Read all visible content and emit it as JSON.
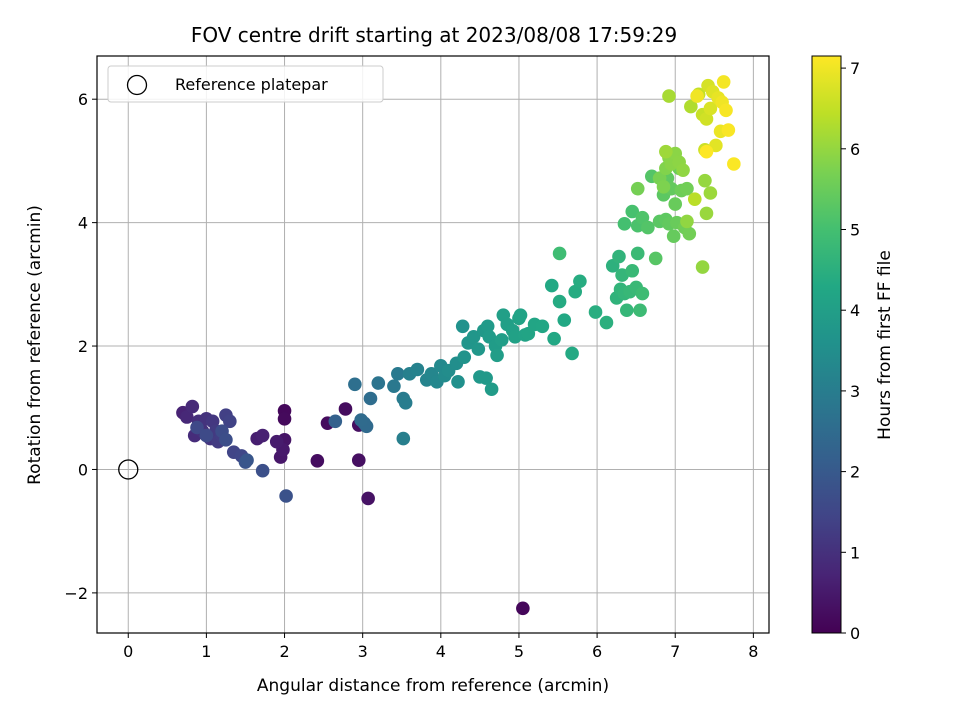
{
  "chart_data": {
    "type": "scatter",
    "title": "FOV centre drift starting at 2023/08/08 17:59:29",
    "xlabel": "Angular distance from reference (arcmin)",
    "ylabel": "Rotation from reference (arcmin)",
    "xlim": [
      -0.4,
      8.2
    ],
    "ylim": [
      -2.65,
      6.7
    ],
    "xticks": [
      0,
      1,
      2,
      3,
      4,
      5,
      6,
      7,
      8
    ],
    "yticks": [
      -2,
      0,
      2,
      4,
      6
    ],
    "xtick_labels": [
      "0",
      "1",
      "2",
      "3",
      "4",
      "5",
      "6",
      "7",
      "8"
    ],
    "ytick_labels": [
      "−2",
      "0",
      "2",
      "4",
      "6"
    ],
    "grid": true,
    "colormap": "viridis",
    "colorbar": {
      "label": "Hours from first FF file",
      "range": [
        0,
        7.15
      ],
      "ticks": [
        0,
        1,
        2,
        3,
        4,
        5,
        6,
        7
      ],
      "tick_labels": [
        "0",
        "1",
        "2",
        "3",
        "4",
        "5",
        "6",
        "7"
      ]
    },
    "legend": {
      "position": "upper-left",
      "entries": [
        {
          "label": "Reference platepar",
          "marker": "open-circle"
        }
      ]
    },
    "reference_point": {
      "x": 0,
      "y": 0
    },
    "series": [
      {
        "color_by": "hours",
        "points": [
          [
            5.05,
            -2.25,
            0.12
          ],
          [
            2.0,
            0.95,
            0.15
          ],
          [
            2.0,
            0.82,
            0.18
          ],
          [
            2.42,
            0.14,
            0.25
          ],
          [
            2.55,
            0.75,
            0.2
          ],
          [
            2.78,
            0.98,
            0.22
          ],
          [
            2.95,
            0.72,
            0.28
          ],
          [
            2.95,
            0.15,
            0.3
          ],
          [
            3.07,
            -0.47,
            0.35
          ],
          [
            2.0,
            0.48,
            0.4
          ],
          [
            1.95,
            0.2,
            0.45
          ],
          [
            1.98,
            0.32,
            0.5
          ],
          [
            1.9,
            0.45,
            0.55
          ],
          [
            1.65,
            0.5,
            0.6
          ],
          [
            1.72,
            0.55,
            0.65
          ],
          [
            0.7,
            0.92,
            0.7
          ],
          [
            0.75,
            0.85,
            0.8
          ],
          [
            0.82,
            1.02,
            0.85
          ],
          [
            0.85,
            0.55,
            0.9
          ],
          [
            0.9,
            0.78,
            0.95
          ],
          [
            0.95,
            0.62,
            1.0
          ],
          [
            1.0,
            0.82,
            1.05
          ],
          [
            1.05,
            0.5,
            1.1
          ],
          [
            1.08,
            0.78,
            1.15
          ],
          [
            1.12,
            0.62,
            1.2
          ],
          [
            1.15,
            0.45,
            1.25
          ],
          [
            1.2,
            0.55,
            1.3
          ],
          [
            1.25,
            0.88,
            1.35
          ],
          [
            1.3,
            0.78,
            1.4
          ],
          [
            1.35,
            0.28,
            1.45
          ],
          [
            1.45,
            0.22,
            1.5
          ],
          [
            0.88,
            0.68,
            1.55
          ],
          [
            1.0,
            0.55,
            1.6
          ],
          [
            1.2,
            0.62,
            1.65
          ],
          [
            1.25,
            0.48,
            1.7
          ],
          [
            1.72,
            -0.02,
            1.75
          ],
          [
            2.02,
            -0.43,
            1.8
          ],
          [
            1.5,
            0.12,
            1.85
          ],
          [
            1.52,
            0.15,
            1.9
          ],
          [
            2.65,
            0.78,
            2.2
          ],
          [
            3.02,
            0.75,
            2.4
          ],
          [
            3.05,
            0.7,
            2.45
          ],
          [
            2.98,
            0.8,
            2.5
          ],
          [
            3.1,
            1.15,
            2.55
          ],
          [
            2.9,
            1.38,
            2.6
          ],
          [
            3.2,
            1.4,
            2.75
          ],
          [
            3.4,
            1.35,
            2.85
          ],
          [
            3.45,
            1.55,
            2.9
          ],
          [
            3.52,
            1.15,
            2.95
          ],
          [
            3.55,
            1.08,
            3.0
          ],
          [
            3.52,
            0.5,
            3.05
          ],
          [
            3.6,
            1.55,
            3.1
          ],
          [
            3.7,
            1.62,
            3.15
          ],
          [
            3.82,
            1.45,
            3.2
          ],
          [
            3.88,
            1.55,
            3.25
          ],
          [
            3.95,
            1.42,
            3.3
          ],
          [
            4.0,
            1.68,
            3.35
          ],
          [
            4.05,
            1.52,
            3.4
          ],
          [
            4.1,
            1.6,
            3.45
          ],
          [
            4.2,
            1.72,
            3.5
          ],
          [
            4.22,
            1.42,
            3.55
          ],
          [
            4.28,
            2.32,
            3.6
          ],
          [
            4.3,
            1.82,
            3.65
          ],
          [
            4.35,
            2.05,
            3.7
          ],
          [
            4.42,
            2.15,
            3.72
          ],
          [
            4.48,
            1.95,
            3.75
          ],
          [
            4.5,
            1.5,
            3.78
          ],
          [
            4.55,
            2.25,
            3.8
          ],
          [
            4.58,
            1.48,
            3.82
          ],
          [
            4.6,
            2.32,
            3.85
          ],
          [
            4.62,
            2.15,
            3.88
          ],
          [
            4.65,
            1.3,
            3.9
          ],
          [
            4.7,
            2.0,
            3.92
          ],
          [
            4.72,
            1.85,
            3.95
          ],
          [
            4.78,
            2.1,
            3.97
          ],
          [
            4.8,
            2.5,
            4.0
          ],
          [
            4.85,
            2.35,
            4.02
          ],
          [
            4.92,
            2.25,
            4.05
          ],
          [
            4.95,
            2.15,
            4.08
          ],
          [
            5.0,
            2.45,
            4.1
          ],
          [
            5.02,
            2.5,
            4.12
          ],
          [
            5.08,
            2.18,
            4.15
          ],
          [
            5.12,
            2.2,
            4.18
          ],
          [
            5.2,
            2.35,
            4.2
          ],
          [
            5.3,
            2.32,
            4.22
          ],
          [
            5.45,
            2.12,
            4.25
          ],
          [
            5.42,
            2.98,
            4.28
          ],
          [
            5.58,
            2.42,
            4.3
          ],
          [
            5.68,
            1.88,
            4.33
          ],
          [
            5.52,
            2.72,
            4.35
          ],
          [
            5.72,
            2.88,
            4.38
          ],
          [
            5.78,
            3.05,
            4.4
          ],
          [
            5.98,
            2.55,
            4.45
          ],
          [
            6.12,
            2.38,
            4.5
          ],
          [
            6.2,
            3.3,
            4.55
          ],
          [
            6.25,
            2.78,
            4.6
          ],
          [
            6.28,
            3.45,
            4.62
          ],
          [
            6.3,
            2.92,
            4.65
          ],
          [
            6.32,
            3.15,
            4.68
          ],
          [
            6.35,
            2.85,
            4.7
          ],
          [
            6.38,
            2.58,
            4.72
          ],
          [
            6.42,
            2.88,
            4.75
          ],
          [
            6.45,
            3.22,
            4.78
          ],
          [
            6.5,
            2.95,
            4.8
          ],
          [
            6.52,
            3.5,
            4.82
          ],
          [
            6.55,
            2.58,
            4.85
          ],
          [
            6.58,
            2.85,
            4.88
          ],
          [
            5.52,
            3.5,
            4.9
          ],
          [
            6.35,
            3.98,
            5.0
          ],
          [
            6.45,
            4.18,
            5.05
          ],
          [
            6.52,
            3.95,
            5.1
          ],
          [
            6.58,
            4.08,
            5.15
          ],
          [
            6.65,
            3.92,
            5.2
          ],
          [
            6.7,
            4.75,
            5.22
          ],
          [
            6.75,
            3.42,
            5.25
          ],
          [
            6.8,
            4.02,
            5.3
          ],
          [
            6.85,
            4.45,
            5.32
          ],
          [
            6.88,
            4.05,
            5.35
          ],
          [
            6.9,
            4.72,
            5.38
          ],
          [
            6.92,
            3.98,
            5.4
          ],
          [
            6.95,
            4.55,
            5.42
          ],
          [
            6.98,
            3.78,
            5.45
          ],
          [
            7.0,
            4.3,
            5.48
          ],
          [
            7.02,
            4.0,
            5.5
          ],
          [
            7.05,
            4.88,
            5.52
          ],
          [
            7.08,
            4.52,
            5.55
          ],
          [
            7.12,
            3.92,
            5.58
          ],
          [
            7.15,
            4.55,
            5.6
          ],
          [
            7.18,
            3.82,
            5.62
          ],
          [
            6.52,
            4.55,
            5.65
          ],
          [
            6.8,
            4.72,
            5.7
          ],
          [
            6.85,
            4.58,
            5.75
          ],
          [
            6.88,
            4.88,
            5.8
          ],
          [
            6.92,
            5.05,
            5.85
          ],
          [
            6.95,
            4.95,
            5.88
          ],
          [
            7.0,
            5.12,
            5.9
          ],
          [
            7.05,
            4.98,
            5.92
          ],
          [
            7.1,
            4.85,
            5.95
          ],
          [
            7.15,
            4.02,
            5.97
          ],
          [
            7.35,
            3.28,
            6.0
          ],
          [
            7.38,
            4.68,
            6.02
          ],
          [
            7.4,
            4.15,
            6.05
          ],
          [
            7.45,
            4.48,
            6.08
          ],
          [
            6.88,
            5.15,
            6.1
          ],
          [
            6.92,
            6.05,
            6.2
          ],
          [
            7.2,
            5.88,
            6.3
          ],
          [
            7.25,
            4.38,
            6.4
          ],
          [
            7.3,
            6.08,
            6.5
          ],
          [
            7.35,
            5.75,
            6.55
          ],
          [
            7.38,
            5.18,
            6.6
          ],
          [
            7.4,
            5.68,
            6.65
          ],
          [
            7.42,
            6.22,
            6.7
          ],
          [
            7.45,
            5.85,
            6.75
          ],
          [
            7.48,
            6.12,
            6.8
          ],
          [
            7.52,
            5.25,
            6.85
          ],
          [
            7.55,
            6.02,
            6.9
          ],
          [
            7.58,
            5.48,
            6.95
          ],
          [
            7.6,
            5.95,
            7.0
          ],
          [
            7.62,
            6.28,
            7.05
          ],
          [
            7.65,
            5.82,
            7.08
          ],
          [
            7.68,
            5.5,
            7.1
          ],
          [
            7.75,
            4.95,
            7.12
          ],
          [
            7.4,
            5.15,
            7.15
          ],
          [
            7.28,
            6.05,
            7.0
          ]
        ]
      }
    ]
  }
}
